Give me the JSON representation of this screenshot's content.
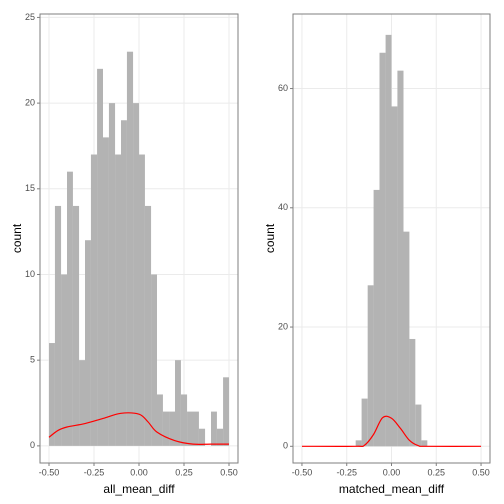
{
  "chart_data": [
    {
      "type": "histogram",
      "x_label": "all_mean_diff",
      "y_label": "count",
      "color": "#b3b3b3",
      "bins": [
        -0.5,
        -0.467,
        -0.433,
        -0.4,
        -0.367,
        -0.333,
        -0.3,
        -0.267,
        -0.233,
        -0.2,
        -0.167,
        -0.133,
        -0.1,
        -0.067,
        -0.033,
        0,
        0.033,
        0.067,
        0.1,
        0.133,
        0.167,
        0.2,
        0.233,
        0.267,
        0.3,
        0.333,
        0.367,
        0.4,
        0.433,
        0.467,
        0.5
      ],
      "counts": [
        6,
        14,
        10,
        16,
        14,
        5,
        12,
        17,
        22,
        18,
        20,
        17,
        19,
        23,
        20,
        17,
        14,
        10,
        3,
        2,
        2,
        5,
        3,
        2,
        2,
        1,
        0,
        2,
        1,
        4
      ],
      "density": {
        "color": "#ff0000",
        "x": [
          -0.5,
          -0.45,
          -0.4,
          -0.3,
          -0.2,
          -0.1,
          0,
          0.05,
          0.1,
          0.2,
          0.3,
          0.4,
          0.5
        ],
        "values": [
          0.5,
          0.9,
          1.1,
          1.3,
          1.6,
          1.9,
          1.85,
          1.4,
          0.8,
          0.3,
          0.1,
          0.1,
          0.1
        ]
      },
      "xlim": [
        -0.55,
        0.55
      ],
      "ylim": [
        -1,
        25.2
      ],
      "xticks": [
        {
          "value": -0.5,
          "label": "-0.50"
        },
        {
          "value": -0.25,
          "label": "-0.25"
        },
        {
          "value": 0,
          "label": "0.00"
        },
        {
          "value": 0.25,
          "label": "0.25"
        },
        {
          "value": 0.5,
          "label": "0.50"
        }
      ],
      "yticks": [
        0,
        5,
        10,
        15,
        20,
        25
      ],
      "grid": true
    },
    {
      "type": "histogram",
      "x_label": "matched_mean_diff",
      "y_label": "count",
      "color": "#b3b3b3",
      "bins": [
        -0.2,
        -0.167,
        -0.133,
        -0.1,
        -0.067,
        -0.033,
        0,
        0.033,
        0.067,
        0.1,
        0.133,
        0.167,
        0.2
      ],
      "counts": [
        1,
        8,
        27,
        43,
        66,
        69,
        57,
        63,
        36,
        18,
        7,
        1
      ],
      "density": {
        "color": "#ff0000",
        "x": [
          -0.5,
          -0.2,
          -0.15,
          -0.1,
          -0.05,
          0,
          0.05,
          0.1,
          0.15,
          0.2,
          0.5
        ],
        "values": [
          0,
          0,
          0.2,
          2,
          4.8,
          4.7,
          3,
          1,
          0.1,
          0,
          0
        ]
      },
      "xlim": [
        -0.55,
        0.55
      ],
      "ylim": [
        -2.8,
        72.5
      ],
      "xticks": [
        {
          "value": -0.5,
          "label": "-0.50"
        },
        {
          "value": -0.25,
          "label": "-0.25"
        },
        {
          "value": 0,
          "label": "0.00"
        },
        {
          "value": 0.25,
          "label": "0.25"
        },
        {
          "value": 0.5,
          "label": "0.50"
        }
      ],
      "yticks": [
        0,
        20,
        40,
        60
      ],
      "grid": true
    }
  ]
}
